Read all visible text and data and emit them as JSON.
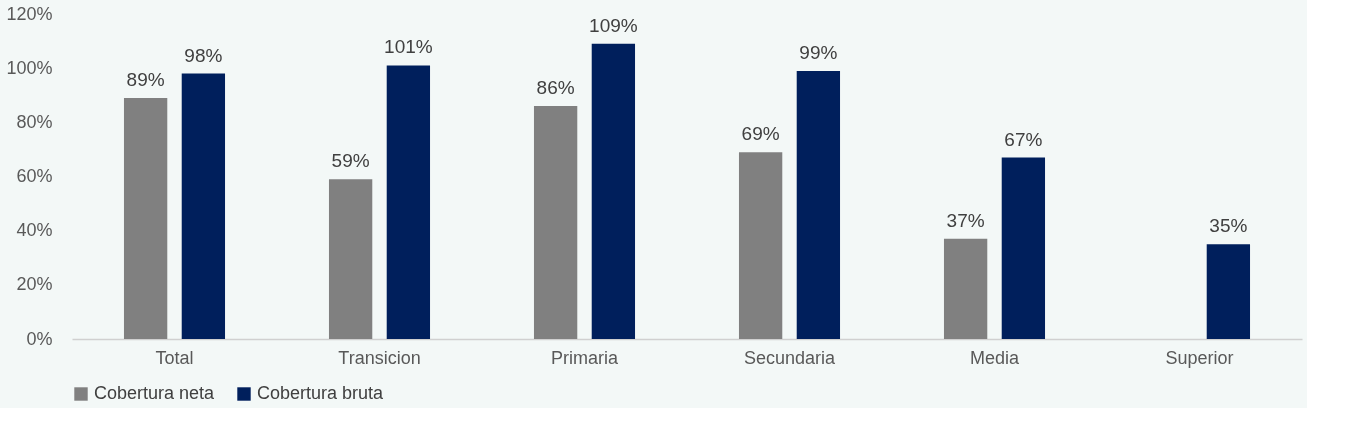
{
  "chart_data": {
    "type": "bar",
    "categories": [
      "Total",
      "Transicion",
      "Primaria",
      "Secundaria",
      "Media",
      "Superior"
    ],
    "series": [
      {
        "name": "Cobertura neta",
        "color": "#808080",
        "values": [
          89,
          59,
          86,
          69,
          37,
          null
        ],
        "value_labels": [
          "89%",
          "59%",
          "86%",
          "69%",
          "37%",
          null
        ]
      },
      {
        "name": "Cobertura bruta",
        "color": "#001f5c",
        "values": [
          98,
          101,
          109,
          99,
          67,
          35
        ],
        "value_labels": [
          "98%",
          "101%",
          "109%",
          "99%",
          "67%",
          "35%"
        ]
      }
    ],
    "ylim": [
      0,
      120
    ],
    "yticks": [
      {
        "value": 0,
        "label": "0%"
      },
      {
        "value": 20,
        "label": "20%"
      },
      {
        "value": 40,
        "label": "40%"
      },
      {
        "value": 60,
        "label": "60%"
      },
      {
        "value": 80,
        "label": "80%"
      },
      {
        "value": 100,
        "label": "100%"
      },
      {
        "value": 120,
        "label": "120%"
      }
    ],
    "grid": false,
    "legend": "bottom"
  }
}
